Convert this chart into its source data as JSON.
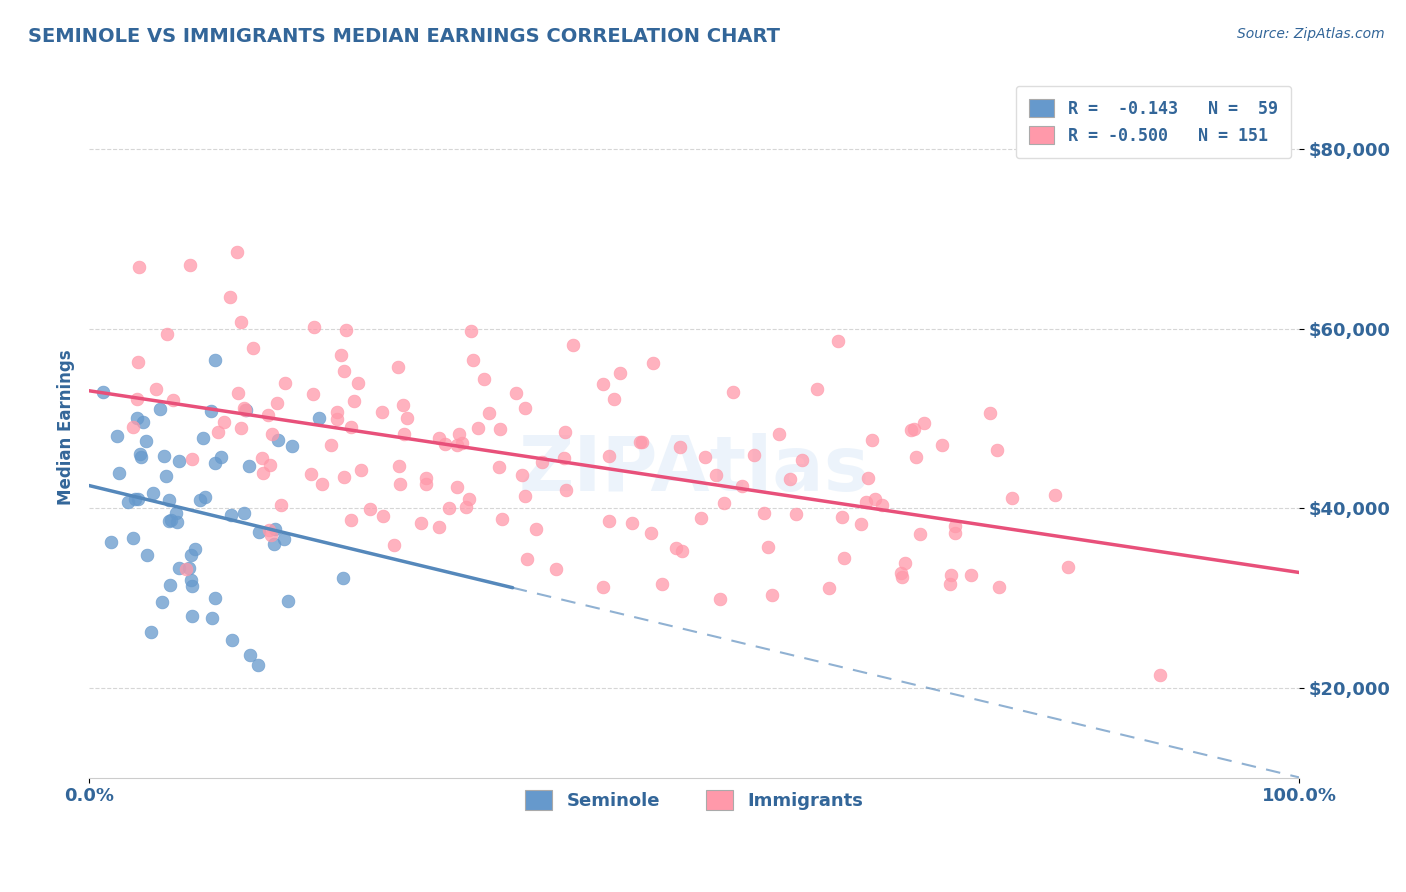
{
  "title": "SEMINOLE VS IMMIGRANTS MEDIAN EARNINGS CORRELATION CHART",
  "source": "Source: ZipAtlas.com",
  "xlabel": "",
  "ylabel": "Median Earnings",
  "xlim": [
    0.0,
    100.0
  ],
  "ylim": [
    10000,
    88000
  ],
  "yticks": [
    20000,
    40000,
    60000,
    80000
  ],
  "ytick_labels": [
    "$20,000",
    "$40,000",
    "$60,000",
    "$80,000"
  ],
  "xtick_labels": [
    "0.0%",
    "100.0%"
  ],
  "seminole_color": "#6699CC",
  "immigrants_color": "#FF99AA",
  "seminole_trend_color": "#5588BB",
  "immigrants_trend_color": "#E8507A",
  "seminole_R": -0.143,
  "seminole_N": 59,
  "immigrants_R": -0.5,
  "immigrants_N": 151,
  "watermark": "ZIPAtlas",
  "background_color": "#ffffff",
  "grid_color": "#cccccc",
  "title_color": "#336699",
  "axis_label_color": "#336699",
  "tick_color": "#336699",
  "source_color": "#336699"
}
